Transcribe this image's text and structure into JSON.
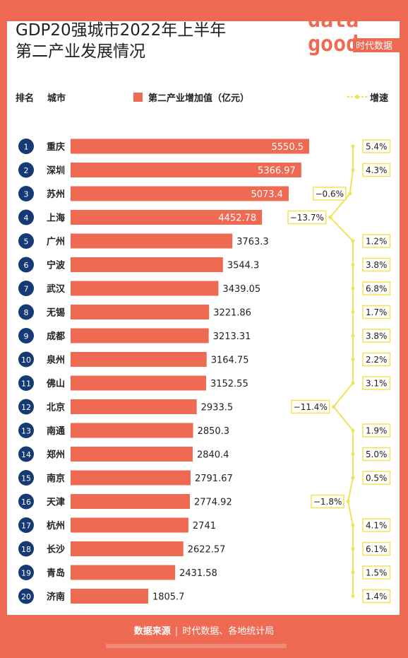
{
  "title_line1": "GDP20强城市2022年上半年",
  "title_line2": "第二产业发展情况",
  "logo": {
    "text_top": "data",
    "text_bottom": "good",
    "brand": "时代数据"
  },
  "headers": {
    "rank": "排名",
    "city": "城市",
    "bar_legend": "第二产业增加值（亿元）",
    "growth_legend": "增速"
  },
  "footer": {
    "label": "数据来源",
    "source": "时代数据、各地统计局"
  },
  "colors": {
    "bar": "#ee6a52",
    "rank_circle": "#163a73",
    "line": "#f2e25a",
    "background": "#ee6a52"
  },
  "chart_data": {
    "type": "bar",
    "orientation": "horizontal",
    "ranks": [
      "1",
      "2",
      "3",
      "4",
      "5",
      "6",
      "7",
      "8",
      "9",
      "10",
      "11",
      "12",
      "13",
      "14",
      "15",
      "16",
      "17",
      "18",
      "19",
      "20"
    ],
    "categories": [
      "重庆",
      "深圳",
      "苏州",
      "上海",
      "广州",
      "宁波",
      "武汉",
      "无锡",
      "成都",
      "泉州",
      "佛山",
      "北京",
      "南通",
      "郑州",
      "南京",
      "天津",
      "杭州",
      "长沙",
      "青岛",
      "济南"
    ],
    "values": [
      5550.5,
      5366.97,
      5073.4,
      4452.78,
      3763.3,
      3544.3,
      3439.05,
      3221.86,
      3213.31,
      3164.75,
      3152.55,
      2933.5,
      2850.3,
      2840.4,
      2791.67,
      2774.92,
      2741,
      2622.57,
      2431.58,
      1805.7
    ],
    "value_labels": [
      "5550.5",
      "5366.97",
      "5073.4",
      "4452.78",
      "3763.3",
      "3544.3",
      "3439.05",
      "3221.86",
      "3213.31",
      "3164.75",
      "3152.55",
      "2933.5",
      "2850.3",
      "2840.4",
      "2791.67",
      "2774.92",
      "2741",
      "2622.57",
      "2431.58",
      "1805.7"
    ],
    "growth_labels": [
      "5.4%",
      "4.3%",
      "−0.6%",
      "−13.7%",
      "1.2%",
      "3.8%",
      "6.8%",
      "1.7%",
      "3.8%",
      "2.2%",
      "3.1%",
      "−11.4%",
      "1.9%",
      "5.0%",
      "0.5%",
      "−1.8%",
      "4.1%",
      "6.1%",
      "1.5%",
      "1.4%"
    ],
    "growth": [
      5.4,
      4.3,
      -0.6,
      -13.7,
      1.2,
      3.8,
      6.8,
      1.7,
      3.8,
      2.2,
      3.1,
      -11.4,
      1.9,
      5.0,
      0.5,
      -1.8,
      4.1,
      6.1,
      1.5,
      1.4
    ],
    "series": [
      {
        "name": "第二产业增加值（亿元）"
      },
      {
        "name": "增速"
      }
    ]
  }
}
